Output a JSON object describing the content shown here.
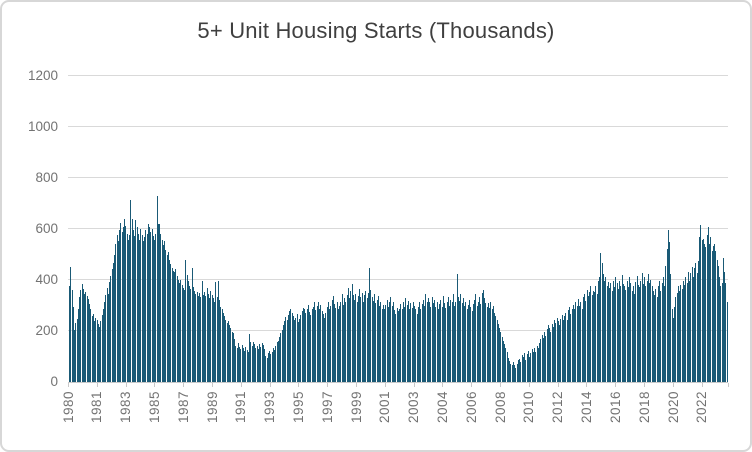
{
  "chart": {
    "title": "5+ Unit Housing Starts (Thousands)"
  },
  "chart_data": {
    "type": "bar",
    "title": "5+ Unit Housing Starts (Thousands)",
    "ylabel": "",
    "xlabel": "",
    "unit": "thousands of housing starts",
    "frequency": "monthly",
    "x_start": "1980-01",
    "x_end": "2023-11",
    "ylim": [
      0,
      1200
    ],
    "y_ticks": [
      0,
      200,
      400,
      600,
      800,
      1000,
      1200
    ],
    "grid": true,
    "legend": false,
    "x_tick_labels": [
      "1980",
      "1981",
      "1983",
      "1985",
      "1987",
      "1989",
      "1991",
      "1993",
      "1995",
      "1997",
      "1999",
      "2001",
      "2003",
      "2004",
      "2006",
      "2008",
      "2010",
      "2012",
      "2014",
      "2016",
      "2018",
      "2020",
      "2022"
    ],
    "x_tick_month_indices": [
      0,
      23,
      46,
      69,
      92,
      115,
      138,
      161,
      184,
      207,
      230,
      253,
      276,
      299,
      322,
      345,
      368,
      391,
      414,
      437,
      460,
      483,
      506
    ],
    "colors": {
      "bar": "#1A5A76",
      "grid": "#D9D9D9",
      "axis": "#C9C9C9",
      "tick_text": "#737373",
      "title_text": "#3F3F3F",
      "frame_border": "#D7D7D7",
      "background": "#FFFFFF"
    },
    "values": [
      378,
      452,
      360,
      295,
      205,
      230,
      248,
      288,
      332,
      362,
      386,
      366,
      345,
      352,
      338,
      326,
      305,
      285,
      260,
      268,
      240,
      252,
      242,
      228,
      216,
      240,
      262,
      288,
      312,
      342,
      368,
      345,
      392,
      415,
      442,
      468,
      498,
      540,
      575,
      552,
      598,
      622,
      588,
      608,
      638,
      612,
      582,
      558,
      578,
      715,
      638,
      598,
      572,
      636,
      608,
      582,
      558,
      602,
      575,
      552,
      568,
      598,
      582,
      618,
      608,
      588,
      602,
      572,
      558,
      582,
      728,
      618,
      620,
      582,
      556,
      538,
      552,
      518,
      498,
      508,
      478,
      462,
      448,
      436,
      430,
      442,
      415,
      400,
      390,
      402,
      380,
      370,
      360,
      477,
      420,
      398,
      378,
      365,
      448,
      372,
      358,
      345,
      352,
      338,
      348,
      332,
      395,
      342,
      352,
      338,
      368,
      345,
      330,
      358,
      342,
      328,
      312,
      392,
      335,
      396,
      322,
      296,
      285,
      270,
      258,
      245,
      232,
      240,
      222,
      210,
      198,
      192,
      168,
      142,
      135,
      152,
      138,
      128,
      145,
      132,
      122,
      138,
      125,
      118,
      188,
      155,
      142,
      158,
      148,
      132,
      140,
      128,
      148,
      138,
      152,
      145,
      128,
      102,
      96,
      112,
      122,
      108,
      118,
      132,
      125,
      142,
      155,
      162,
      178,
      192,
      205,
      222,
      238,
      255,
      242,
      262,
      278,
      288,
      272,
      258,
      242,
      252,
      268,
      235,
      248,
      262,
      278,
      292,
      285,
      272,
      288,
      302,
      275,
      262,
      288,
      295,
      312,
      282,
      298,
      315,
      288,
      302,
      278,
      265,
      252,
      272,
      295,
      312,
      285,
      298,
      322,
      338,
      305,
      292,
      315,
      285,
      298,
      312,
      345,
      302,
      328,
      315,
      342,
      368,
      330,
      355,
      386,
      342,
      322,
      345,
      312,
      338,
      365,
      332,
      348,
      315,
      340,
      358,
      330,
      348,
      448,
      362,
      332,
      318,
      345,
      308,
      322,
      338,
      298,
      315,
      288,
      302,
      285,
      302,
      322,
      295,
      312,
      335,
      298,
      315,
      282,
      268,
      292,
      278,
      288,
      305,
      285,
      312,
      295,
      328,
      302,
      318,
      285,
      308,
      292,
      315,
      298,
      285,
      268,
      295,
      315,
      288,
      305,
      322,
      298,
      345,
      312,
      328,
      315,
      295,
      332,
      308,
      322,
      295,
      312,
      285,
      305,
      322,
      295,
      338,
      308,
      292,
      315,
      335,
      298,
      322,
      312,
      345,
      298,
      315,
      424,
      332,
      318,
      345,
      308,
      328,
      298,
      315,
      285,
      302,
      322,
      295,
      278,
      305,
      322,
      345,
      298,
      315,
      332,
      305,
      348,
      362,
      328,
      310,
      295,
      308,
      292,
      312,
      285,
      298,
      272,
      258,
      242,
      228,
      212,
      195,
      178,
      162,
      148,
      132,
      118,
      95,
      82,
      72,
      65,
      78,
      68,
      55,
      72,
      85,
      92,
      78,
      105,
      98,
      115,
      88,
      108,
      122,
      98,
      112,
      128,
      118,
      132,
      118,
      142,
      135,
      152,
      168,
      185,
      172,
      195,
      182,
      208,
      225,
      212,
      198,
      228,
      215,
      242,
      232,
      252,
      238,
      222,
      248,
      262,
      242,
      258,
      272,
      245,
      282,
      295,
      268,
      288,
      302,
      285,
      312,
      298,
      325,
      298,
      312,
      288,
      332,
      345,
      318,
      362,
      338,
      352,
      375,
      342,
      358,
      352,
      378,
      345,
      398,
      412,
      504,
      468,
      422,
      395,
      412,
      378,
      392,
      368,
      388,
      355,
      398,
      372,
      412,
      388,
      365,
      398,
      378,
      418,
      385,
      378,
      362,
      395,
      372,
      412,
      388,
      358,
      378,
      345,
      392,
      415,
      382,
      372,
      395,
      428,
      385,
      412,
      378,
      398,
      425,
      388,
      402,
      378,
      358,
      342,
      365,
      332,
      378,
      398,
      355,
      388,
      412,
      378,
      455,
      520,
      598,
      548,
      425,
      288,
      252,
      295,
      332,
      348,
      375,
      358,
      382,
      365,
      395,
      382,
      412,
      388,
      432,
      398,
      428,
      452,
      412,
      448,
      465,
      428,
      475,
      568,
      615,
      555,
      561,
      542,
      528,
      575,
      608,
      541,
      568,
      515,
      532,
      542,
      515,
      478,
      455,
      412,
      375,
      388,
      488,
      432,
      388,
      315
    ]
  }
}
